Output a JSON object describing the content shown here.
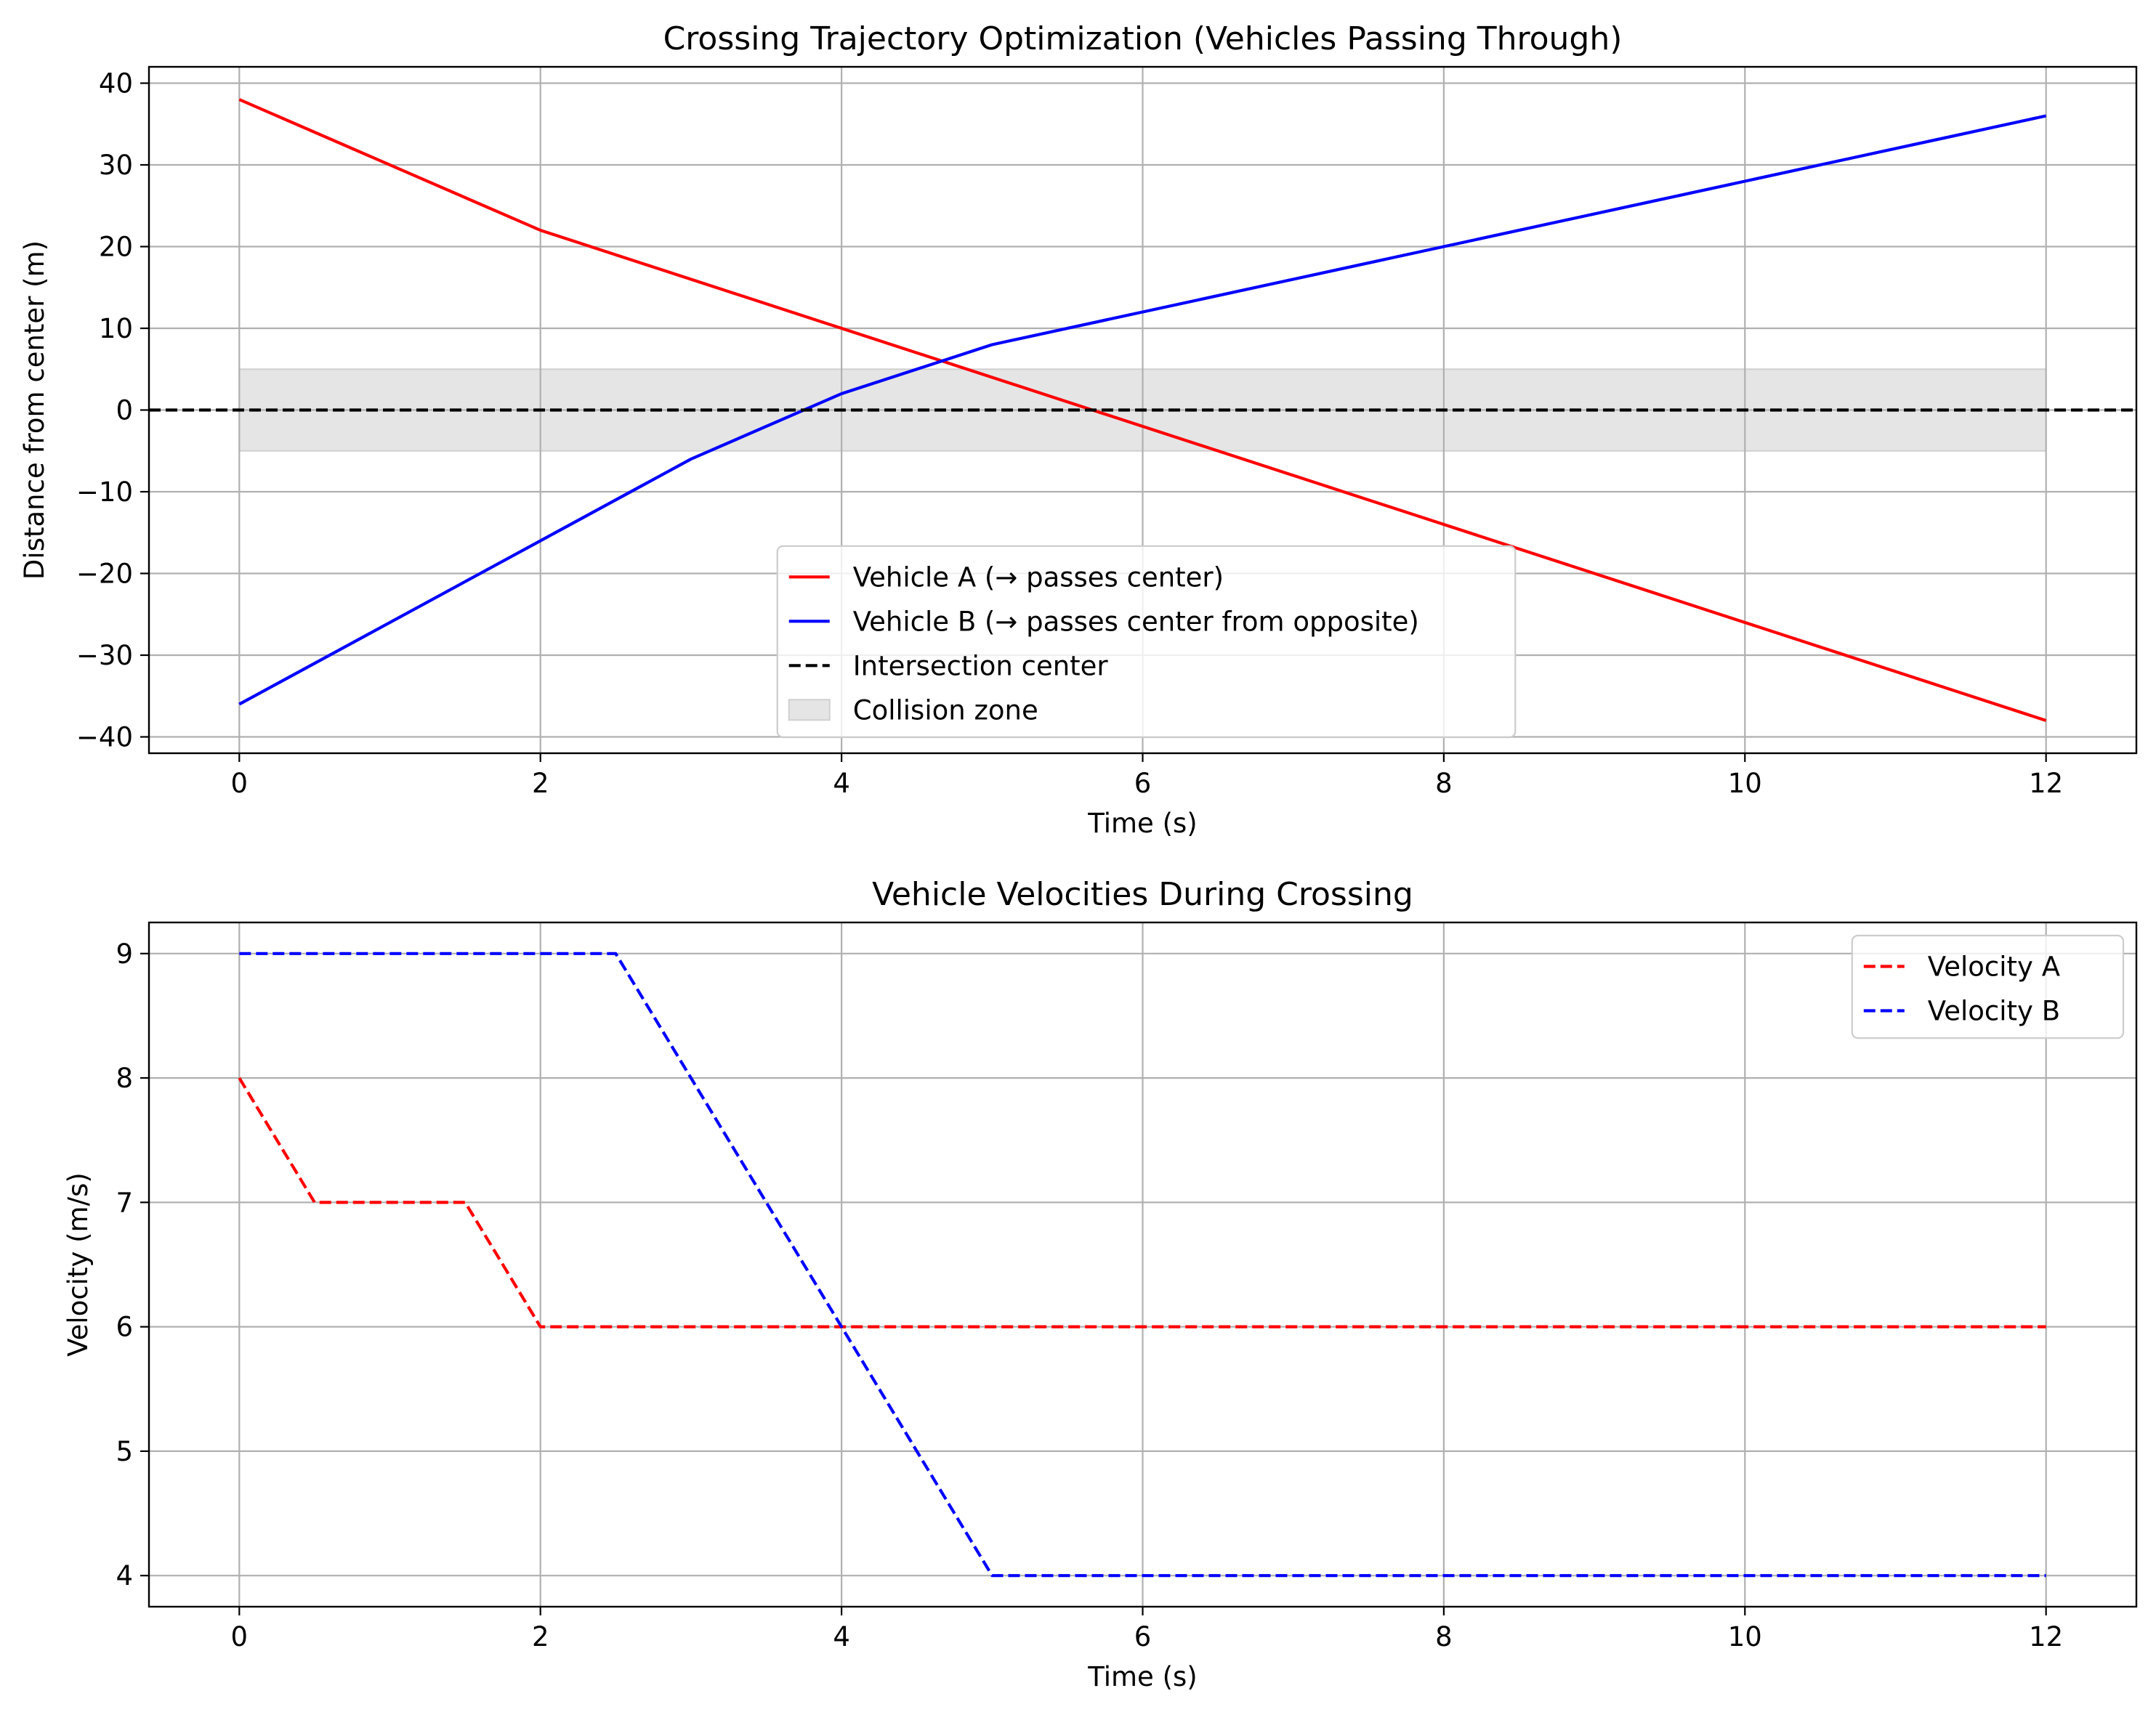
{
  "chart_data": [
    {
      "type": "line",
      "title": "Crossing Trajectory Optimization (Vehicles Passing Through)",
      "xlabel": "Time (s)",
      "ylabel": "Distance from center (m)",
      "xlim": [
        -0.6,
        12.6
      ],
      "ylim": [
        -42,
        42
      ],
      "xticks": [
        0,
        2,
        4,
        6,
        8,
        10,
        12
      ],
      "yticks": [
        -40,
        -30,
        -20,
        -10,
        0,
        10,
        20,
        30,
        40
      ],
      "xtick_labels": [
        "0",
        "2",
        "4",
        "6",
        "8",
        "10",
        "12"
      ],
      "ytick_labels": [
        "−40",
        "−30",
        "−20",
        "−10",
        "0",
        "10",
        "20",
        "30",
        "40"
      ],
      "grid": true,
      "legend_position": "lower-center",
      "series": [
        {
          "name": "Vehicle A (→ passes center)",
          "color": "#ff0000",
          "style": "solid",
          "x": [
            0,
            2,
            4,
            6,
            8,
            10,
            12
          ],
          "y": [
            38,
            22,
            10,
            -2,
            -14,
            -26,
            -38
          ]
        },
        {
          "name": "Vehicle B (→ passes center from opposite)",
          "color": "#0000ff",
          "style": "solid",
          "x": [
            0,
            2,
            3,
            4,
            5,
            6,
            8,
            10,
            12
          ],
          "y": [
            -36,
            -16,
            -6,
            2,
            8,
            12,
            20,
            28,
            36
          ]
        },
        {
          "name": "Intersection center",
          "color": "#000000",
          "style": "dashed",
          "kind": "hline",
          "y": 0
        }
      ],
      "bands": [
        {
          "name": "Collision zone",
          "color": "#e5e5e5",
          "x": [
            0,
            12
          ],
          "y": [
            -5,
            5
          ]
        }
      ]
    },
    {
      "type": "line",
      "title": "Vehicle Velocities During Crossing",
      "xlabel": "Time (s)",
      "ylabel": "Velocity (m/s)",
      "xlim": [
        -0.6,
        12.6
      ],
      "ylim": [
        3.75,
        9.25
      ],
      "xticks": [
        0,
        2,
        4,
        6,
        8,
        10,
        12
      ],
      "yticks": [
        4,
        5,
        6,
        7,
        8,
        9
      ],
      "xtick_labels": [
        "0",
        "2",
        "4",
        "6",
        "8",
        "10",
        "12"
      ],
      "ytick_labels": [
        "4",
        "5",
        "6",
        "7",
        "8",
        "9"
      ],
      "grid": true,
      "legend_position": "upper-right",
      "series": [
        {
          "name": "Velocity A",
          "color": "#ff0000",
          "style": "dashed",
          "x": [
            0,
            0.5,
            1.5,
            2,
            12
          ],
          "y": [
            8,
            7,
            7,
            6,
            6
          ]
        },
        {
          "name": "Velocity B",
          "color": "#0000ff",
          "style": "dashed",
          "x": [
            0,
            2.5,
            5,
            12
          ],
          "y": [
            9,
            9,
            4,
            4
          ]
        }
      ]
    }
  ]
}
